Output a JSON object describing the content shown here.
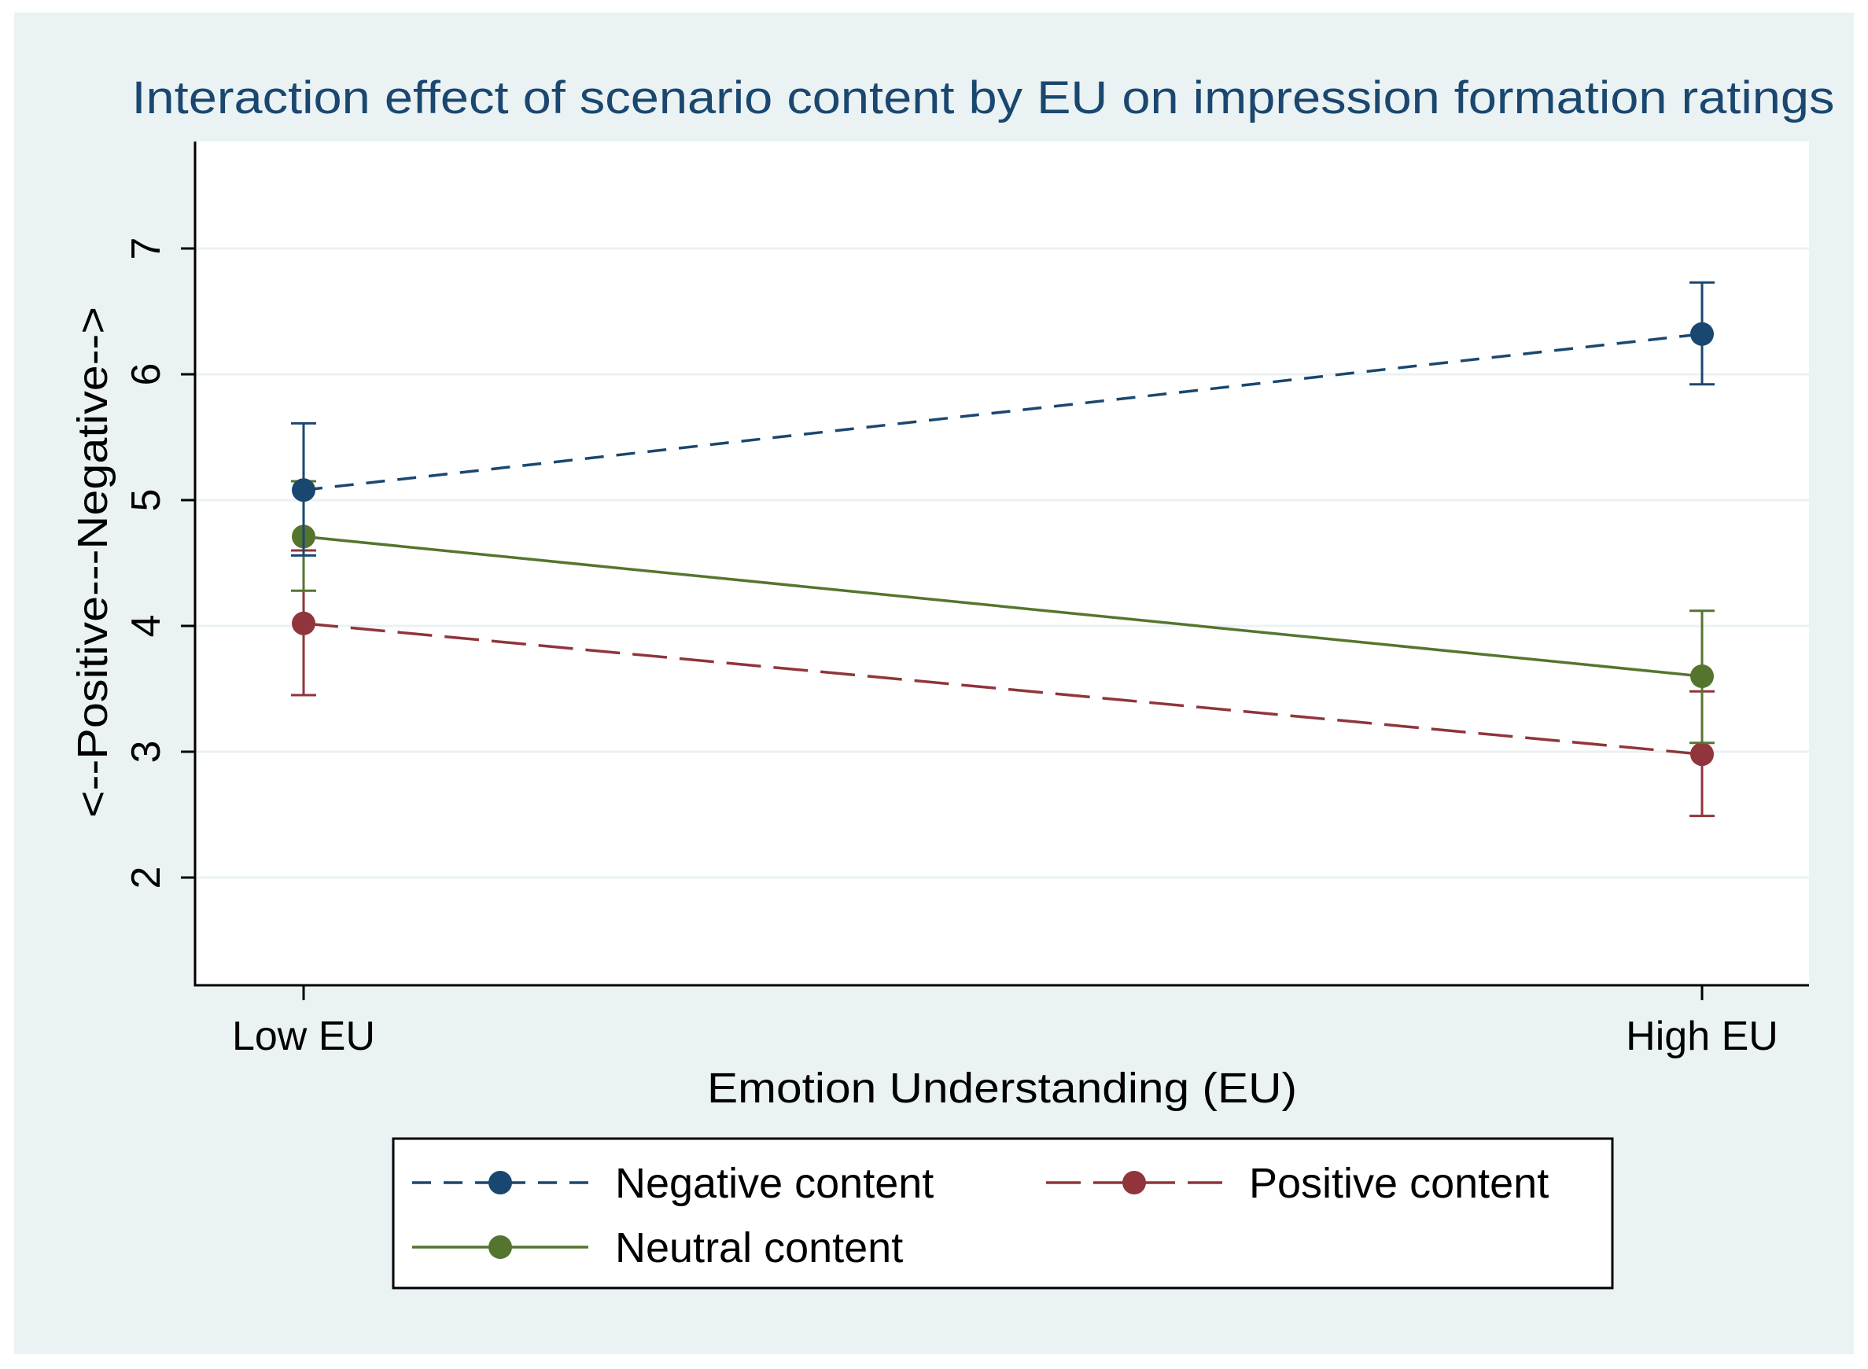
{
  "chart_data": {
    "type": "line",
    "title": "Interaction effect of scenario content by EU on impression formation ratings",
    "xlabel": "Emotion Understanding (EU)",
    "ylabel": "<--Positive---Negative-->",
    "categories": [
      "Low EU",
      "High EU"
    ],
    "yticks": [
      "2",
      "3",
      "4",
      "5",
      "6",
      "7"
    ],
    "ylim": [
      1.15,
      7.85
    ],
    "grid": true,
    "legend_position": "bottom",
    "series": [
      {
        "name": "Negative content",
        "values": [
          5.08,
          6.32
        ],
        "ci_low": [
          4.56,
          5.92
        ],
        "ci_high": [
          5.61,
          6.73
        ],
        "color": "#1a476f",
        "dash": "dashed"
      },
      {
        "name": "Positive content",
        "values": [
          4.02,
          2.98
        ],
        "ci_low": [
          3.45,
          2.49
        ],
        "ci_high": [
          4.6,
          3.48
        ],
        "color": "#90353b",
        "dash": "longdash"
      },
      {
        "name": "Neutral content",
        "values": [
          4.71,
          3.6
        ],
        "ci_low": [
          4.28,
          3.07
        ],
        "ci_high": [
          5.15,
          4.12
        ],
        "color": "#55752f",
        "dash": "solid"
      }
    ]
  },
  "colors": {
    "outer_background": "#eaf2f3",
    "plot_background": "#ffffff",
    "grid": "#eaf2f3",
    "title": "#1a476f",
    "text": "#000000"
  }
}
